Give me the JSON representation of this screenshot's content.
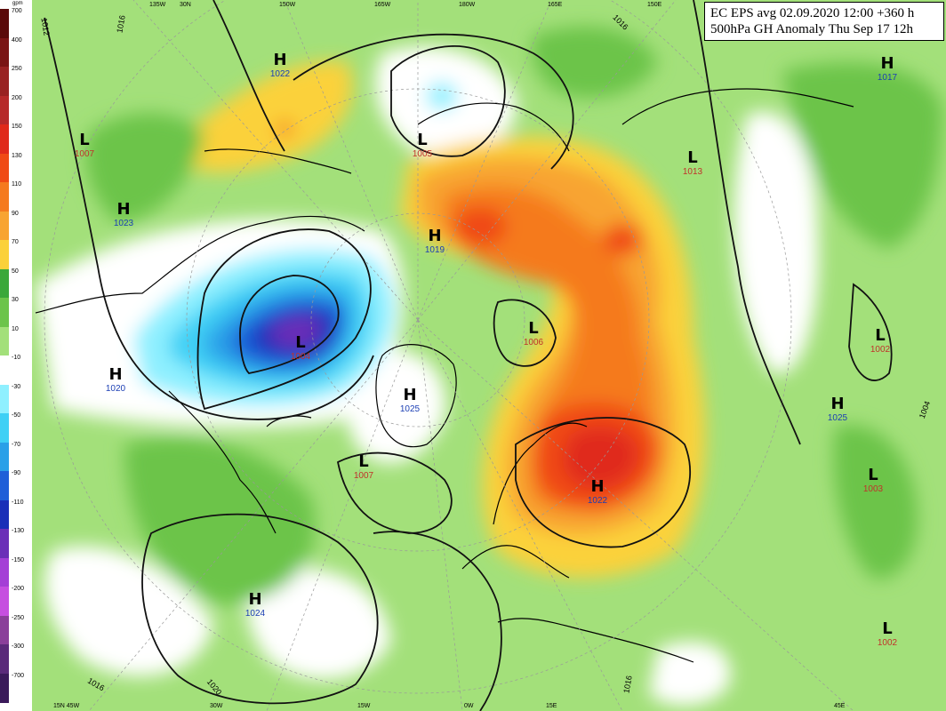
{
  "title": {
    "line1": "EC EPS avg 02.09.2020 12:00 +360 h",
    "line2": "500hPa GH Anomaly Thu Sep 17 12h"
  },
  "colorbar": {
    "unit": "gpm",
    "labels": [
      "700",
      "400",
      "250",
      "200",
      "150",
      "130",
      "110",
      "90",
      "70",
      "50",
      "30",
      "10",
      "-10",
      "-30",
      "-50",
      "-70",
      "-90",
      "-110",
      "-130",
      "-150",
      "-200",
      "-250",
      "-300",
      "-700"
    ],
    "colors": [
      "#5a0a0a",
      "#7a1414",
      "#992222",
      "#b62a2a",
      "#e02a1a",
      "#f04a14",
      "#f57a1e",
      "#f8a431",
      "#fbd13a",
      "#3aa83a",
      "#6cc44a",
      "#a3e07a",
      "#ffffff",
      "#8ff0ff",
      "#3fd0f5",
      "#2aa0e8",
      "#1f5fd8",
      "#1a2fb8",
      "#6b2fb8",
      "#a43fd6",
      "#c64fe0",
      "#8a3f9a",
      "#5a2a7a",
      "#3a1a5a"
    ]
  },
  "pressure_centers": [
    {
      "type": "H",
      "value": "1022"
    },
    {
      "type": "L",
      "value": "1007"
    },
    {
      "type": "H",
      "value": "1023"
    },
    {
      "type": "L",
      "value": "1005"
    },
    {
      "type": "H",
      "value": "1019"
    },
    {
      "type": "L",
      "value": "1013"
    },
    {
      "type": "H",
      "value": "1017"
    },
    {
      "type": "L",
      "value": "1006"
    },
    {
      "type": "L",
      "value": "1004"
    },
    {
      "type": "H",
      "value": "1020"
    },
    {
      "type": "H",
      "value": "1025"
    },
    {
      "type": "L",
      "value": "1007"
    },
    {
      "type": "H",
      "value": "1022"
    },
    {
      "type": "H",
      "value": "1024"
    },
    {
      "type": "L",
      "value": "1002"
    },
    {
      "type": "H",
      "value": "1025"
    },
    {
      "type": "L",
      "value": "1003"
    },
    {
      "type": "L",
      "value": "1002"
    }
  ],
  "longitude_labels": [
    "135W",
    "30N",
    "150W",
    "165W",
    "180W",
    "165E",
    "150E",
    "15N 45W",
    "30W",
    "15W",
    "0W",
    "15E",
    "45E"
  ],
  "isobar_labels": [
    "1012",
    "1016",
    "1016",
    "1020",
    "1016",
    "1016",
    "1004"
  ]
}
